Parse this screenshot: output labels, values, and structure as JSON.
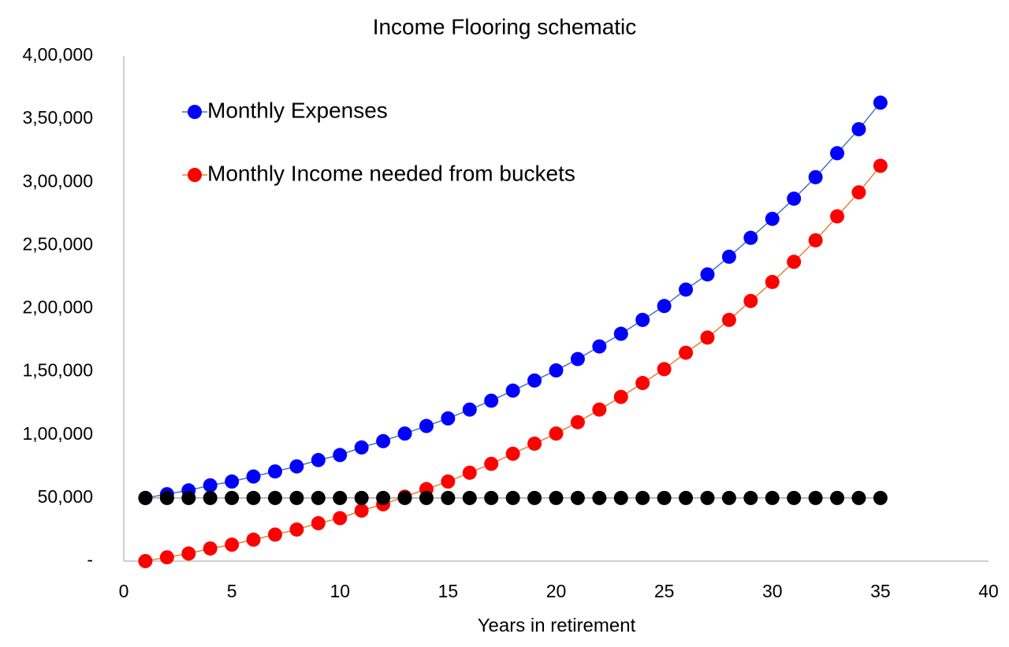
{
  "chart_data": {
    "type": "line",
    "title": "Income Flooring schematic",
    "x_label": "Years in retirement",
    "x": [
      1,
      2,
      3,
      4,
      5,
      6,
      7,
      8,
      9,
      10,
      11,
      12,
      13,
      14,
      15,
      16,
      17,
      18,
      19,
      20,
      21,
      22,
      23,
      24,
      25,
      26,
      27,
      28,
      29,
      30,
      31,
      32,
      33,
      34,
      35
    ],
    "series": [
      {
        "name": "Monthly Expenses",
        "color": "#0000ff",
        "line_color": "#4472c4",
        "values": [
          50000,
          53000,
          56000,
          60000,
          63000,
          67000,
          71000,
          75000,
          80000,
          84000,
          90000,
          95000,
          101000,
          107000,
          113000,
          120000,
          127000,
          135000,
          143000,
          151000,
          160000,
          170000,
          180000,
          191000,
          202000,
          215000,
          227000,
          241000,
          256000,
          271000,
          287000,
          304000,
          323000,
          342000,
          363000
        ]
      },
      {
        "name": "Monthly Income needed from buckets",
        "color": "#ff0000",
        "line_color": "#ed7d31",
        "values": [
          0,
          3000,
          6000,
          10000,
          13000,
          17000,
          21000,
          25000,
          30000,
          34000,
          40000,
          45000,
          51000,
          57000,
          63000,
          70000,
          77000,
          85000,
          93000,
          101000,
          110000,
          120000,
          130000,
          141000,
          152000,
          165000,
          177000,
          191000,
          206000,
          221000,
          237000,
          254000,
          273000,
          292000,
          313000
        ]
      },
      {
        "color": "#000000",
        "line_color": "#a5a5a5",
        "values": [
          50000,
          50000,
          50000,
          50000,
          50000,
          50000,
          50000,
          50000,
          50000,
          50000,
          50000,
          50000,
          50000,
          50000,
          50000,
          50000,
          50000,
          50000,
          50000,
          50000,
          50000,
          50000,
          50000,
          50000,
          50000,
          50000,
          50000,
          50000,
          50000,
          50000,
          50000,
          50000,
          50000,
          50000,
          50000
        ]
      }
    ],
    "xlim": [
      0,
      40
    ],
    "xticks": [
      0,
      5,
      10,
      15,
      20,
      25,
      30,
      35,
      40
    ],
    "ylim": [
      0,
      400000
    ],
    "yticks": [
      {
        "value": 0,
        "label": "-"
      },
      {
        "value": 50000,
        "label": "50,000"
      },
      {
        "value": 100000,
        "label": "1,00,000"
      },
      {
        "value": 150000,
        "label": "1,50,000"
      },
      {
        "value": 200000,
        "label": "2,00,000"
      },
      {
        "value": 250000,
        "label": "2,50,000"
      },
      {
        "value": 300000,
        "label": "3,00,000"
      },
      {
        "value": 350000,
        "label": "3,50,000"
      },
      {
        "value": 400000,
        "label": "4,00,000"
      }
    ],
    "grid": false,
    "legend": "upper left"
  }
}
